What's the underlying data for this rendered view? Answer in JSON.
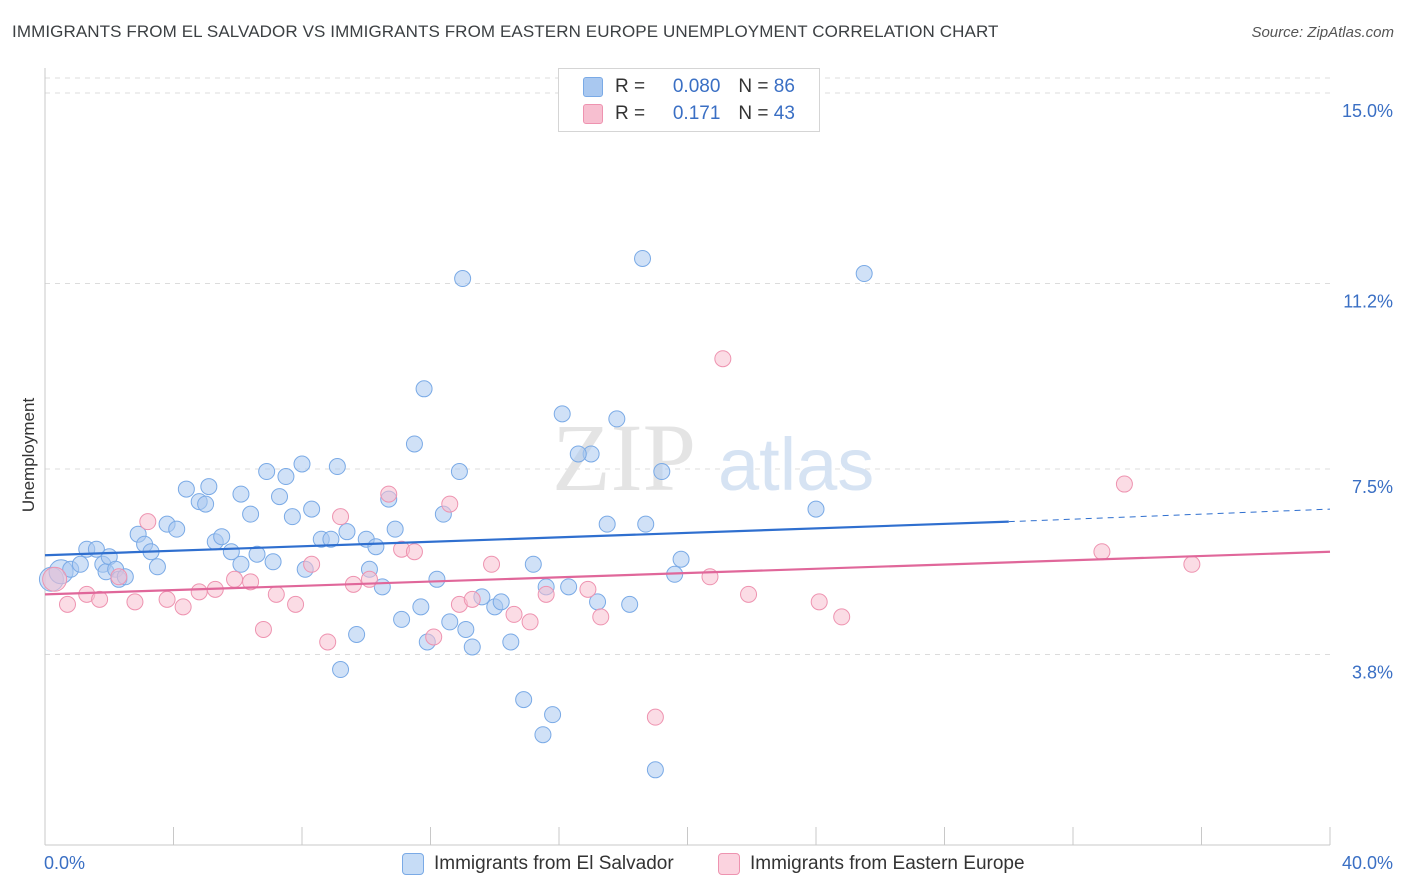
{
  "title": "IMMIGRANTS FROM EL SALVADOR VS IMMIGRANTS FROM EASTERN EUROPE UNEMPLOYMENT CORRELATION CHART",
  "source": "Source: ZipAtlas.com",
  "watermark": {
    "zip": "ZIP",
    "atlas": "atlas"
  },
  "legend": {
    "r_label": "R =",
    "n_label": "N =",
    "rows": [
      {
        "r": "0.080",
        "n": "86",
        "color": "#a9c8f0",
        "border": "#7aaae6"
      },
      {
        "r": "0.171",
        "n": "43",
        "color": "#f7bfd0",
        "border": "#ee93b0"
      }
    ]
  },
  "bottom_legend": [
    {
      "label": "Immigrants from El Salvador",
      "color": "#c6dcf6",
      "border": "#7aaae6"
    },
    {
      "label": "Immigrants from Eastern Europe",
      "color": "#fbd3df",
      "border": "#ee93b0"
    }
  ],
  "chart_data": {
    "type": "scatter",
    "title": "IMMIGRANTS FROM EL SALVADOR VS IMMIGRANTS FROM EASTERN EUROPE UNEMPLOYMENT CORRELATION CHART",
    "xlabel": "",
    "ylabel": "Unemployment",
    "xlim": [
      0,
      40
    ],
    "ylim": [
      0,
      15.3
    ],
    "x_ticks": [
      "0.0%",
      "40.0%"
    ],
    "y_ticks": [
      {
        "value": 3.8,
        "label": "3.8%"
      },
      {
        "value": 7.5,
        "label": "7.5%"
      },
      {
        "value": 11.2,
        "label": "11.2%"
      },
      {
        "value": 15.0,
        "label": "15.0%"
      }
    ],
    "grid": true,
    "series": [
      {
        "name": "Immigrants from El Salvador",
        "color": "#7aaae6",
        "fill": "#a9c8f0",
        "trend": {
          "x": [
            0,
            30
          ],
          "y": [
            5.78,
            6.45
          ],
          "dashed_to": [
            40,
            6.7
          ]
        },
        "points": [
          [
            0.2,
            5.3
          ],
          [
            0.5,
            5.45
          ],
          [
            0.8,
            5.5
          ],
          [
            1.1,
            5.6
          ],
          [
            1.3,
            5.9
          ],
          [
            1.6,
            5.9
          ],
          [
            1.8,
            5.6
          ],
          [
            1.9,
            5.45
          ],
          [
            2.0,
            5.75
          ],
          [
            2.2,
            5.5
          ],
          [
            2.3,
            5.3
          ],
          [
            2.5,
            5.35
          ],
          [
            2.9,
            6.2
          ],
          [
            3.1,
            6.0
          ],
          [
            3.3,
            5.85
          ],
          [
            3.5,
            5.55
          ],
          [
            3.8,
            6.4
          ],
          [
            4.1,
            6.3
          ],
          [
            4.4,
            7.1
          ],
          [
            4.8,
            6.85
          ],
          [
            5.0,
            6.8
          ],
          [
            5.1,
            7.15
          ],
          [
            5.3,
            6.05
          ],
          [
            5.5,
            6.15
          ],
          [
            5.8,
            5.85
          ],
          [
            6.1,
            5.6
          ],
          [
            6.1,
            7.0
          ],
          [
            6.4,
            6.6
          ],
          [
            6.6,
            5.8
          ],
          [
            6.9,
            7.45
          ],
          [
            7.1,
            5.65
          ],
          [
            7.3,
            6.95
          ],
          [
            7.5,
            7.35
          ],
          [
            7.7,
            6.55
          ],
          [
            8.0,
            7.6
          ],
          [
            8.1,
            5.5
          ],
          [
            8.3,
            6.7
          ],
          [
            8.6,
            6.1
          ],
          [
            8.9,
            6.1
          ],
          [
            9.1,
            7.55
          ],
          [
            9.2,
            3.5
          ],
          [
            9.4,
            6.25
          ],
          [
            9.7,
            4.2
          ],
          [
            10.0,
            6.1
          ],
          [
            10.1,
            5.5
          ],
          [
            10.3,
            5.95
          ],
          [
            10.5,
            5.15
          ],
          [
            10.7,
            6.9
          ],
          [
            10.9,
            6.3
          ],
          [
            11.1,
            4.5
          ],
          [
            11.5,
            8.0
          ],
          [
            11.7,
            4.75
          ],
          [
            11.9,
            4.05
          ],
          [
            12.2,
            5.3
          ],
          [
            12.4,
            6.6
          ],
          [
            12.6,
            4.45
          ],
          [
            12.9,
            7.45
          ],
          [
            13.1,
            4.3
          ],
          [
            13.3,
            3.95
          ],
          [
            13.0,
            11.3
          ],
          [
            14.0,
            4.75
          ],
          [
            14.2,
            4.85
          ],
          [
            14.5,
            4.05
          ],
          [
            14.9,
            2.9
          ],
          [
            15.2,
            5.6
          ],
          [
            15.6,
            5.15
          ],
          [
            15.8,
            2.6
          ],
          [
            16.1,
            8.6
          ],
          [
            16.3,
            5.15
          ],
          [
            17.0,
            7.8
          ],
          [
            17.2,
            4.85
          ],
          [
            17.5,
            6.4
          ],
          [
            17.8,
            8.5
          ],
          [
            18.2,
            4.8
          ],
          [
            18.7,
            6.4
          ],
          [
            19.0,
            1.5
          ],
          [
            19.2,
            7.45
          ],
          [
            19.8,
            5.7
          ],
          [
            19.6,
            5.4
          ],
          [
            18.6,
            11.7
          ],
          [
            25.5,
            11.4
          ],
          [
            24.0,
            6.7
          ],
          [
            11.8,
            9.1
          ],
          [
            15.5,
            2.2
          ],
          [
            16.6,
            7.8
          ],
          [
            13.6,
            4.95
          ]
        ]
      },
      {
        "name": "Immigrants from Eastern Europe",
        "color": "#ee93b0",
        "fill": "#f7bfd0",
        "trend": {
          "x": [
            0,
            40
          ],
          "y": [
            5.0,
            5.85
          ]
        },
        "points": [
          [
            0.3,
            5.3
          ],
          [
            0.7,
            4.8
          ],
          [
            1.3,
            5.0
          ],
          [
            1.7,
            4.9
          ],
          [
            2.3,
            5.35
          ],
          [
            2.8,
            4.85
          ],
          [
            3.2,
            6.45
          ],
          [
            3.8,
            4.9
          ],
          [
            4.3,
            4.75
          ],
          [
            4.8,
            5.05
          ],
          [
            5.3,
            5.1
          ],
          [
            5.9,
            5.3
          ],
          [
            6.4,
            5.25
          ],
          [
            6.8,
            4.3
          ],
          [
            7.2,
            5.0
          ],
          [
            7.8,
            4.8
          ],
          [
            8.3,
            5.6
          ],
          [
            8.8,
            4.05
          ],
          [
            9.2,
            6.55
          ],
          [
            9.6,
            5.2
          ],
          [
            10.1,
            5.3
          ],
          [
            10.7,
            7.0
          ],
          [
            11.1,
            5.9
          ],
          [
            11.5,
            5.85
          ],
          [
            12.1,
            4.15
          ],
          [
            12.6,
            6.8
          ],
          [
            12.9,
            4.8
          ],
          [
            13.3,
            4.9
          ],
          [
            13.9,
            5.6
          ],
          [
            14.6,
            4.6
          ],
          [
            15.1,
            4.45
          ],
          [
            15.6,
            5.0
          ],
          [
            16.9,
            5.1
          ],
          [
            17.3,
            4.55
          ],
          [
            19.0,
            2.55
          ],
          [
            20.7,
            5.35
          ],
          [
            21.1,
            9.7
          ],
          [
            21.9,
            5.0
          ],
          [
            24.1,
            4.85
          ],
          [
            24.8,
            4.55
          ],
          [
            32.9,
            5.85
          ],
          [
            33.6,
            7.2
          ],
          [
            35.7,
            5.6
          ]
        ]
      }
    ]
  }
}
